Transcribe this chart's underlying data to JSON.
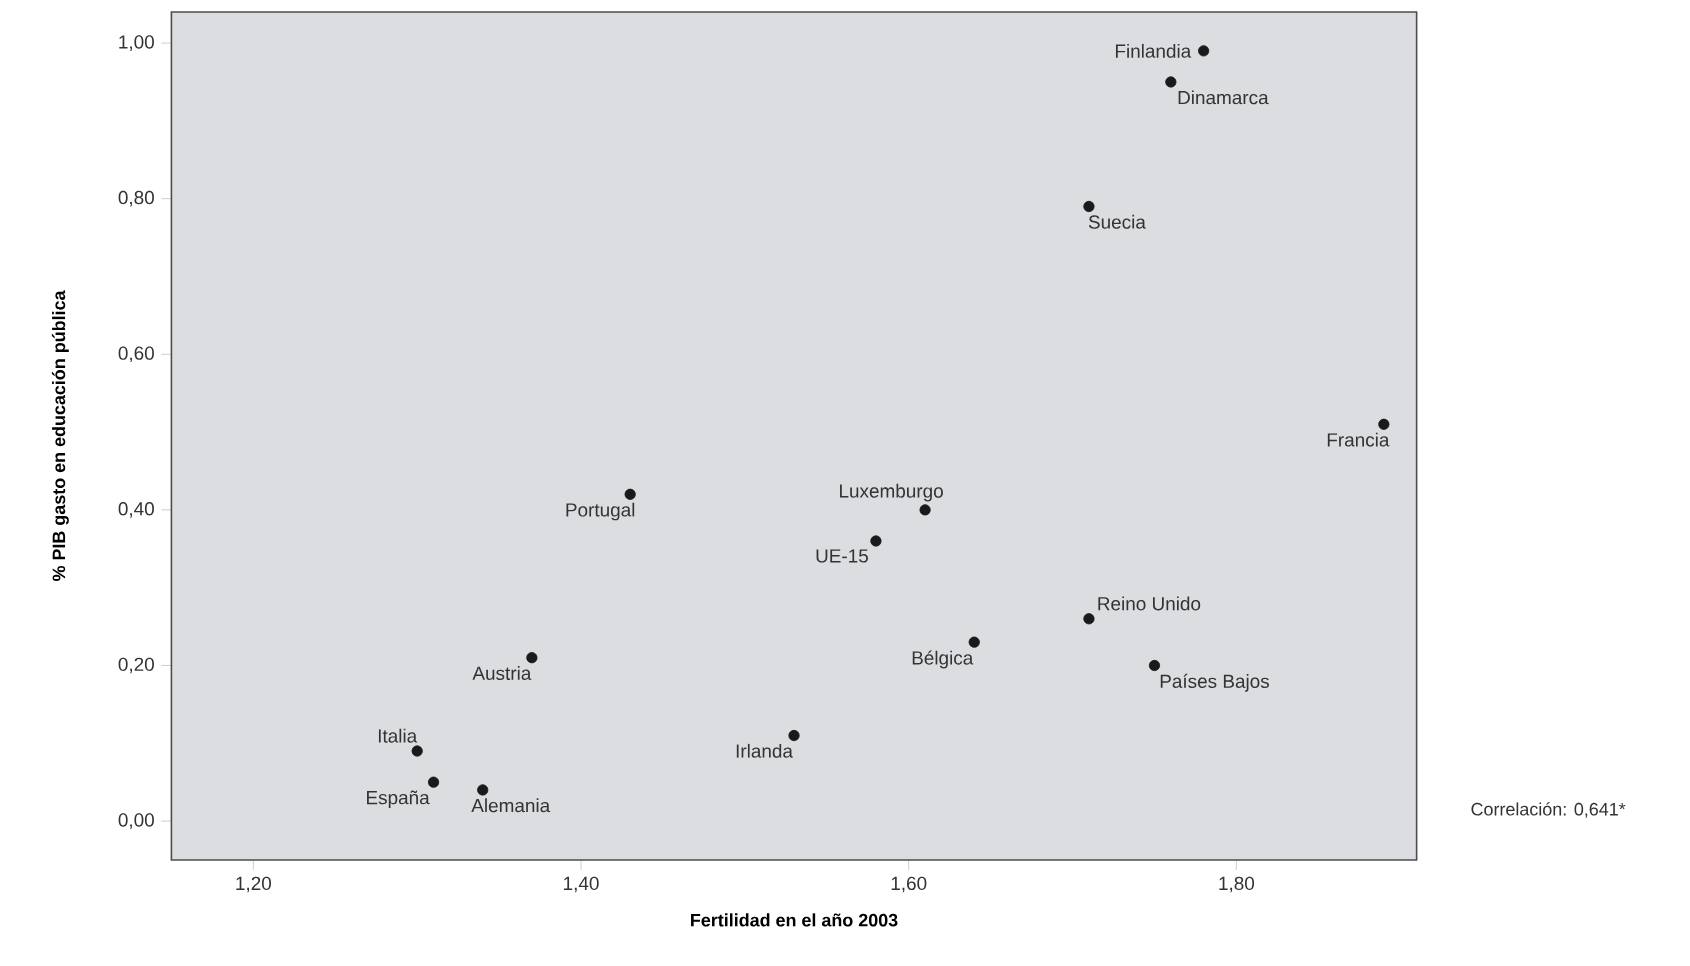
{
  "chart_data": {
    "type": "scatter",
    "xlabel": "Fertilidad en el año 2003",
    "ylabel": "% PIB gasto en educación pública",
    "x": [
      1.3,
      1.31,
      1.34,
      1.37,
      1.43,
      1.53,
      1.58,
      1.61,
      1.64,
      1.71,
      1.75,
      1.71,
      1.76,
      1.78,
      1.89
    ],
    "values": [
      0.09,
      0.05,
      0.04,
      0.21,
      0.42,
      0.11,
      0.36,
      0.4,
      0.23,
      0.26,
      0.2,
      0.79,
      0.95,
      0.99,
      0.51
    ],
    "color": "#1a1a1a",
    "xlim": [
      1.15,
      1.91
    ],
    "ylim": [
      -0.05,
      1.04
    ],
    "xticks": [
      {
        "value": 1.2,
        "label": "1,20"
      },
      {
        "value": 1.4,
        "label": "1,40"
      },
      {
        "value": 1.6,
        "label": "1,60"
      },
      {
        "value": 1.8,
        "label": "1,80"
      }
    ],
    "yticks": [
      {
        "value": 0,
        "label": "0,00"
      },
      {
        "value": 0.2,
        "label": "0,20"
      },
      {
        "value": 0.4,
        "label": "0,40"
      },
      {
        "value": 0.6,
        "label": "0,60"
      },
      {
        "value": 0.8,
        "label": "0,80"
      },
      {
        "value": 1.0,
        "label": "1,00"
      }
    ],
    "annotations": [
      {
        "text": "Italia",
        "x": 1.3,
        "y": 0.09
      },
      {
        "text": "España",
        "x": 1.31,
        "y": 0.05
      },
      {
        "text": "Alemania",
        "x": 1.34,
        "y": 0.04
      },
      {
        "text": "Austria",
        "x": 1.37,
        "y": 0.21
      },
      {
        "text": "Portugal",
        "x": 1.43,
        "y": 0.42
      },
      {
        "text": "Irlanda",
        "x": 1.53,
        "y": 0.11
      },
      {
        "text": "UE-15",
        "x": 1.58,
        "y": 0.36
      },
      {
        "text": "Luxemburgo",
        "x": 1.61,
        "y": 0.4
      },
      {
        "text": "Bélgica",
        "x": 1.64,
        "y": 0.23
      },
      {
        "text": "Reino Unido",
        "x": 1.71,
        "y": 0.26
      },
      {
        "text": "Países Bajos",
        "x": 1.75,
        "y": 0.2
      },
      {
        "text": "Suecia",
        "x": 1.71,
        "y": 0.79
      },
      {
        "text": "Dinamarca",
        "x": 1.76,
        "y": 0.95
      },
      {
        "text": "Finlandia",
        "x": 1.78,
        "y": 0.99
      },
      {
        "text": "Francia",
        "x": 1.89,
        "y": 0.51
      },
      "Correlación: 0,641*"
    ]
  }
}
